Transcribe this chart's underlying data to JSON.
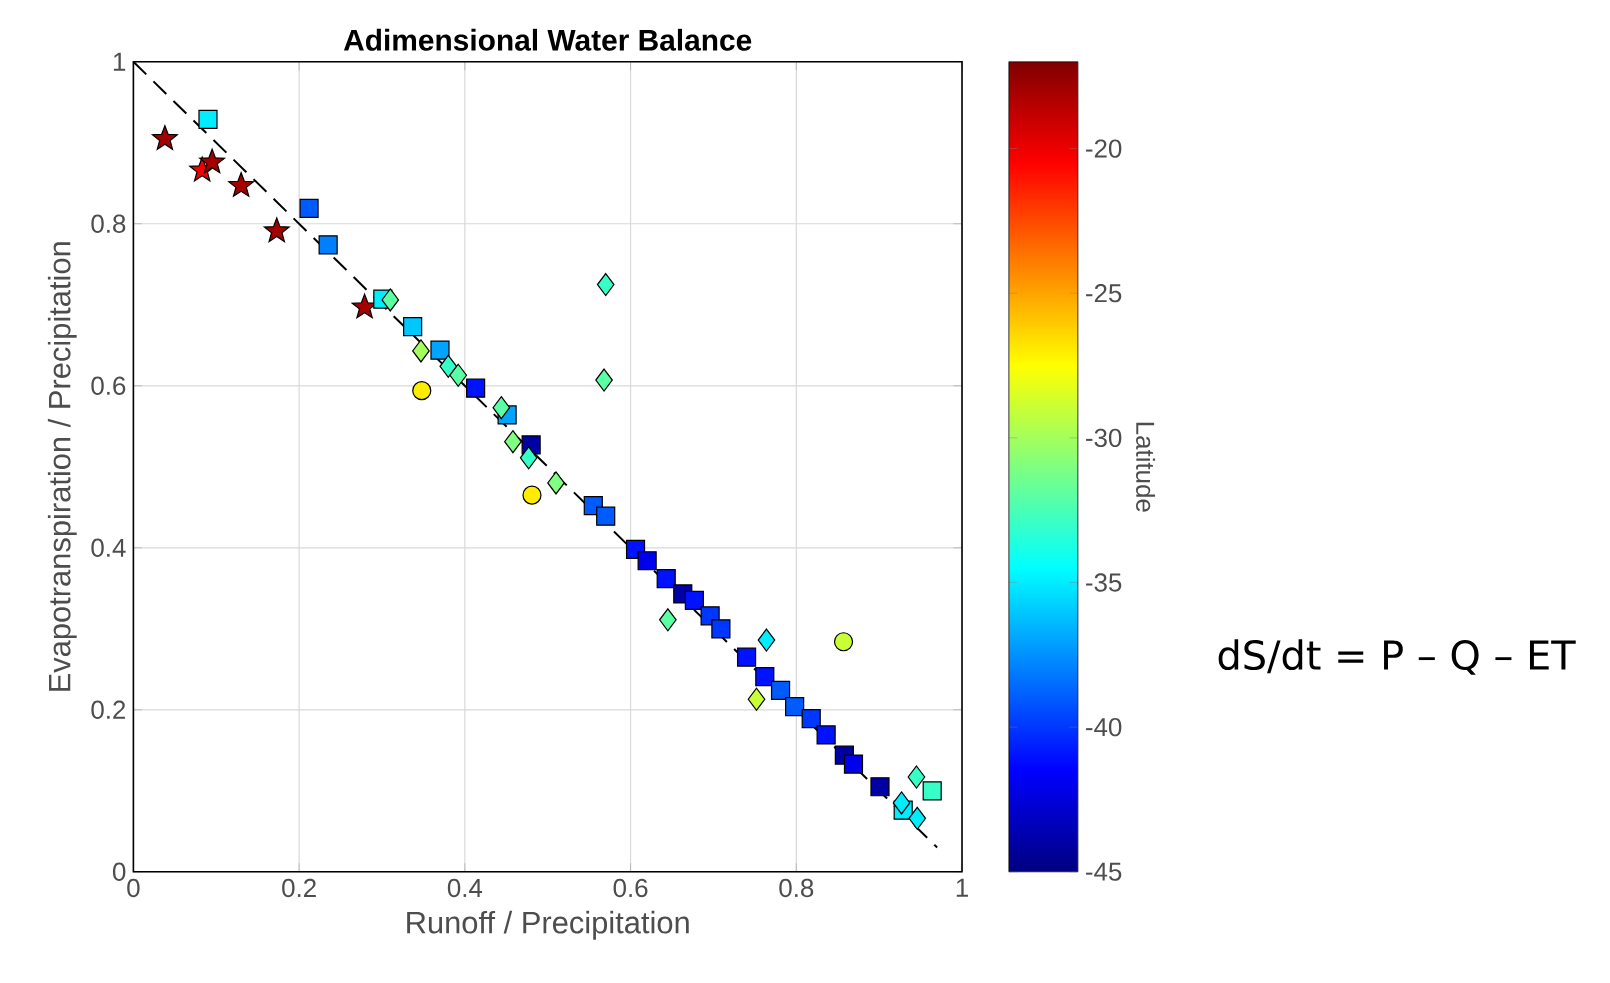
{
  "chart_data": {
    "type": "scatter",
    "title": "Adimensional Water Balance",
    "xlabel": "Runoff / Precipitation",
    "ylabel": "Evapotranspiration / Precipitation",
    "clabel": "Latitude",
    "annotations": [
      "dS/dt = P – Q – ET"
    ],
    "xlim": [
      0,
      1
    ],
    "ylim": [
      0,
      1
    ],
    "xticks": [
      0,
      0.2,
      0.4,
      0.6,
      0.8,
      1
    ],
    "yticks": [
      0,
      0.2,
      0.4,
      0.6,
      0.8,
      1
    ],
    "grid": true,
    "clim": [
      -45,
      -17
    ],
    "cticks": [
      -45,
      -40,
      -35,
      -30,
      -25,
      -20
    ],
    "series": [
      {
        "type": "line",
        "color": "#000000",
        "line_style": "dashed",
        "marker": "none",
        "x": [
          0,
          0.97
        ],
        "values": [
          1,
          0.03
        ]
      },
      {
        "type": "scatter",
        "marker": "star",
        "x": [
          0.038,
          0.083,
          0.095,
          0.13,
          0.173,
          0.279
        ],
        "values": [
          0.905,
          0.866,
          0.876,
          0.847,
          0.791,
          0.697
        ],
        "cvalues": [
          -18,
          -20,
          -18,
          -18,
          -18,
          -18
        ],
        "colors": [
          "#A40000",
          "#ED0000",
          "#A40000",
          "#A40000",
          "#A40000",
          "#A40000"
        ]
      },
      {
        "type": "scatter",
        "marker": "square",
        "x": [
          0.09,
          0.212,
          0.235,
          0.301,
          0.337,
          0.37,
          0.413,
          0.451,
          0.48,
          0.555,
          0.57,
          0.606,
          0.62,
          0.643,
          0.663,
          0.677,
          0.696,
          0.709,
          0.74,
          0.762,
          0.781,
          0.798,
          0.818,
          0.836,
          0.858,
          0.869,
          0.901,
          0.929,
          0.964
        ],
        "values": [
          0.929,
          0.819,
          0.774,
          0.707,
          0.673,
          0.644,
          0.597,
          0.564,
          0.527,
          0.452,
          0.439,
          0.398,
          0.384,
          0.362,
          0.343,
          0.335,
          0.316,
          0.3,
          0.265,
          0.241,
          0.224,
          0.204,
          0.189,
          0.169,
          0.144,
          0.133,
          0.105,
          0.076,
          0.1
        ],
        "cvalues": [
          -35,
          -39,
          -38,
          -35,
          -36,
          -37,
          -41,
          -37,
          -44,
          -39,
          -39,
          -41,
          -42,
          -41,
          -44,
          -41,
          -40,
          -40,
          -41,
          -41,
          -39,
          -39,
          -40,
          -41,
          -44,
          -42,
          -44,
          -35,
          -33
        ],
        "colors": [
          "#00EDFF",
          "#005BFF",
          "#0080FF",
          "#00EDFF",
          "#00C8FF",
          "#00A4FF",
          "#0012FF",
          "#00A4FF",
          "#0000A4",
          "#005BFF",
          "#005BFF",
          "#0012FF",
          "#0000ED",
          "#0012FF",
          "#0000A4",
          "#0012FF",
          "#0037FF",
          "#0037FF",
          "#0012FF",
          "#0012FF",
          "#005BFF",
          "#005BFF",
          "#0037FF",
          "#0012FF",
          "#0000A4",
          "#0000ED",
          "#0000A4",
          "#00EDFF",
          "#37FFC8"
        ]
      },
      {
        "type": "scatter",
        "marker": "diamond",
        "x": [
          0.31,
          0.347,
          0.38,
          0.392,
          0.57,
          0.568,
          0.444,
          0.458,
          0.477,
          0.51,
          0.645,
          0.764,
          0.752,
          0.945,
          0.946,
          0.927
        ],
        "values": [
          0.706,
          0.643,
          0.624,
          0.613,
          0.725,
          0.607,
          0.573,
          0.531,
          0.511,
          0.48,
          0.311,
          0.286,
          0.213,
          0.117,
          0.066,
          0.085
        ],
        "cvalues": [
          -32,
          -30,
          -33,
          -32,
          -33,
          -32,
          -32,
          -31,
          -33,
          -31,
          -32,
          -35,
          -29,
          -33,
          -35,
          -35
        ],
        "colors": [
          "#5BFFA4",
          "#A4FF5B",
          "#37FFC8",
          "#5BFFA4",
          "#37FFC8",
          "#5BFFA4",
          "#5BFFA4",
          "#80FF80",
          "#37FFC8",
          "#80FF80",
          "#5BFFA4",
          "#00EDFF",
          "#C8FF37",
          "#37FFC8",
          "#00EDFF",
          "#00EDFF"
        ]
      },
      {
        "type": "scatter",
        "marker": "circle",
        "x": [
          0.348,
          0.481,
          0.857
        ],
        "values": [
          0.594,
          0.465,
          0.284
        ],
        "cvalues": [
          -27,
          -27,
          -29
        ],
        "colors": [
          "#FFED00",
          "#FFED00",
          "#C8FF37"
        ]
      }
    ]
  }
}
